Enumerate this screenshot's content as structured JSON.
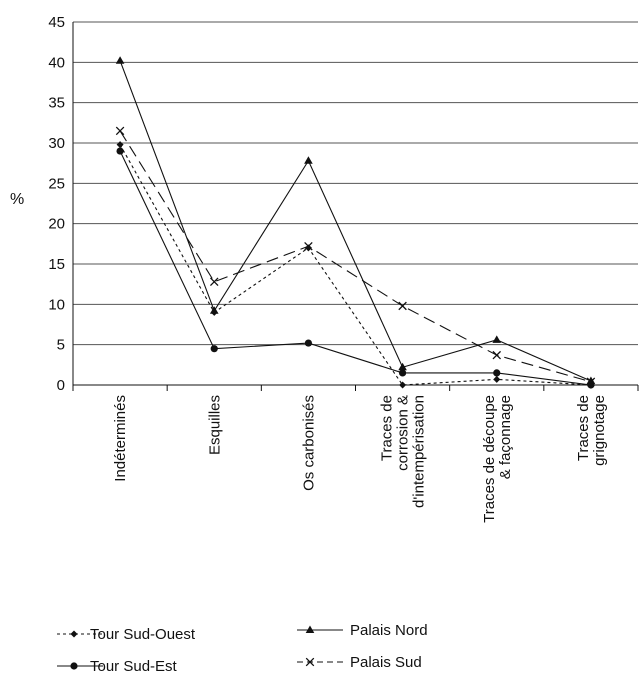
{
  "chart_data": {
    "type": "line",
    "ylabel": "%",
    "ylim": [
      0,
      45
    ],
    "yticks": [
      0,
      5,
      10,
      15,
      20,
      25,
      30,
      35,
      40,
      45
    ],
    "grid": "horizontal",
    "legend_position": "bottom",
    "categories": [
      [
        "Indéterminés"
      ],
      [
        "Esquilles"
      ],
      [
        "Os carbonisés"
      ],
      [
        "Traces de",
        "corrosion &",
        "d'intempérisation"
      ],
      [
        "Traces de découpe",
        "& façonnage"
      ],
      [
        "Traces de",
        "grignotage"
      ]
    ],
    "series": [
      {
        "name": "Tour Sud-Ouest",
        "marker": "diamond",
        "dash": "3,3",
        "values": [
          29.8,
          9.0,
          17.0,
          0.0,
          0.7,
          0.0
        ]
      },
      {
        "name": "Tour Sud-Est",
        "marker": "circle",
        "dash": "",
        "values": [
          29.0,
          4.5,
          5.2,
          1.5,
          1.5,
          0.0
        ]
      },
      {
        "name": "Palais Nord",
        "marker": "triangle",
        "dash": "",
        "values": [
          40.2,
          9.2,
          27.8,
          2.2,
          5.6,
          0.5
        ]
      },
      {
        "name": "Palais Sud",
        "marker": "x",
        "dash": "12,6",
        "values": [
          31.5,
          12.8,
          17.2,
          9.8,
          3.7,
          0.4
        ]
      }
    ]
  }
}
